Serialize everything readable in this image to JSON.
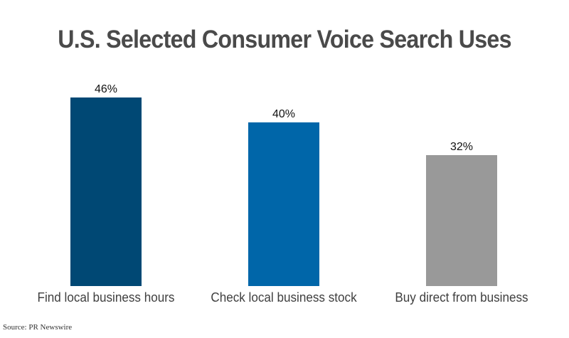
{
  "title": "U.S. Selected Consumer Voice Search Uses",
  "source": "Source: PR Newswire",
  "chart_data": {
    "type": "bar",
    "title": "U.S. Selected Consumer Voice Search Uses",
    "categories": [
      "Find local business hours",
      "Check local business stock",
      "Buy direct from business"
    ],
    "values": [
      46,
      40,
      32
    ],
    "value_labels": [
      "46%",
      "40%",
      "32%"
    ],
    "colors": [
      "#004874",
      "#0066a9",
      "#999999"
    ],
    "xlabel": "",
    "ylabel": "",
    "ylim": [
      0,
      46
    ],
    "grid": false,
    "legend": "none",
    "source": "PR Newswire"
  }
}
